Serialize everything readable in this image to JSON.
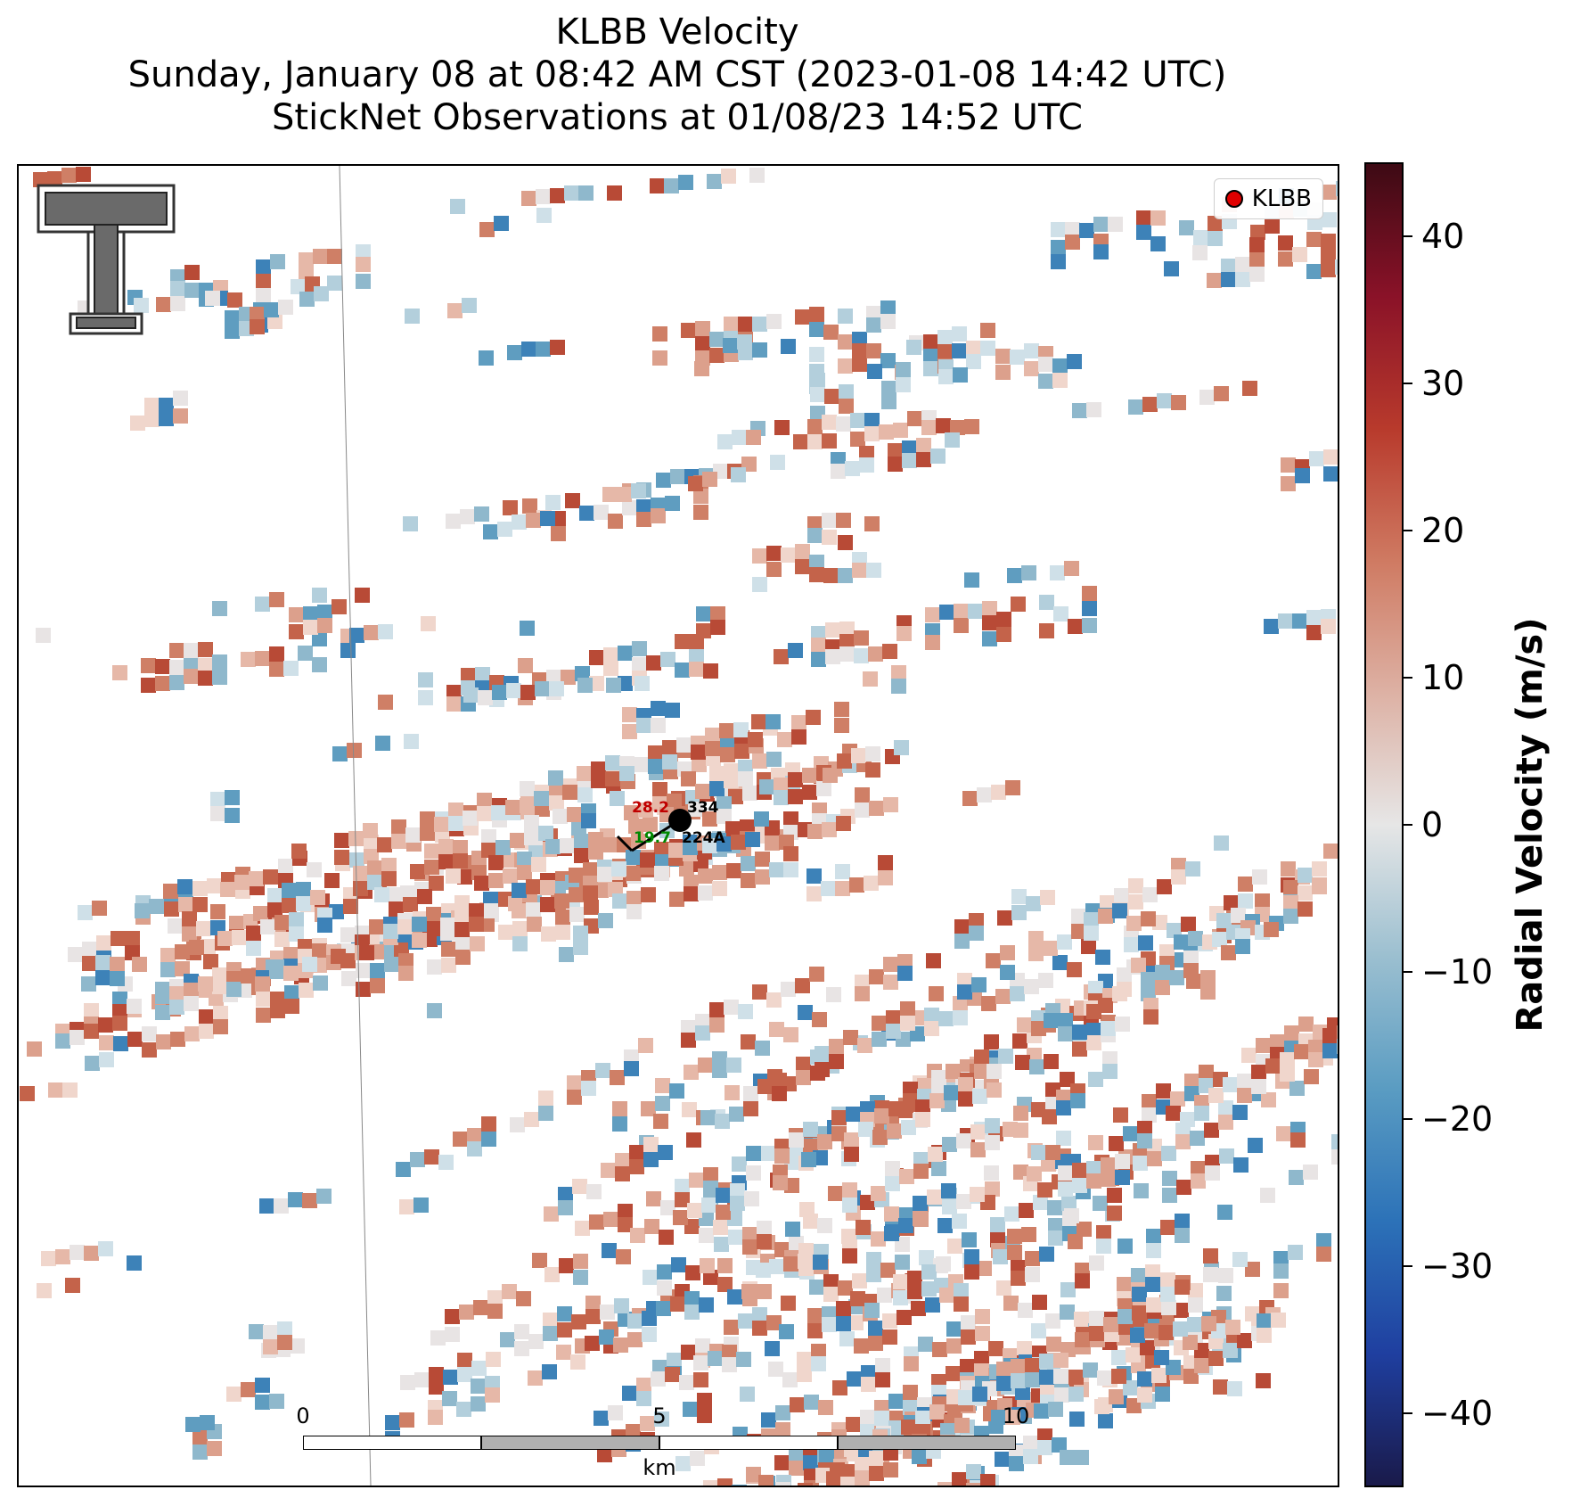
{
  "title": {
    "line1": "KLBB Velocity",
    "line2": "Sunday, January 08 at 08:42 AM CST (2023-01-08 14:42 UTC)",
    "line3": "StickNet Observations at 01/08/23 14:52 UTC"
  },
  "legend": {
    "label": "KLBB",
    "marker_color": "#e00000"
  },
  "station": {
    "id": "224A",
    "temperature": "28.2",
    "dewpoint": "19.7",
    "pressure": "334",
    "temp_color": "#c00000",
    "dew_color": "#008800"
  },
  "scalebar": {
    "ticks": [
      "0",
      "5",
      "10"
    ],
    "unit": "km"
  },
  "colorbar": {
    "title": "Radial Velocity (m/s)",
    "vmin": -45,
    "vmax": 45,
    "ticks": [
      40,
      30,
      20,
      10,
      0,
      -10,
      -20,
      -30,
      -40
    ],
    "tick_labels": [
      "40",
      "30",
      "20",
      "10",
      "0",
      "−10",
      "−20",
      "−30",
      "−40"
    ],
    "colors": [
      "#1a1a4a",
      "#1f3fa0",
      "#2c72b8",
      "#5a9cc2",
      "#9bbfd0",
      "#e6e6e6",
      "#ddb1a4",
      "#cf7a62",
      "#b83a2c",
      "#8a1228",
      "#3d0a14"
    ]
  },
  "icons": {
    "logo": "texas-tech-double-t-logo"
  }
}
